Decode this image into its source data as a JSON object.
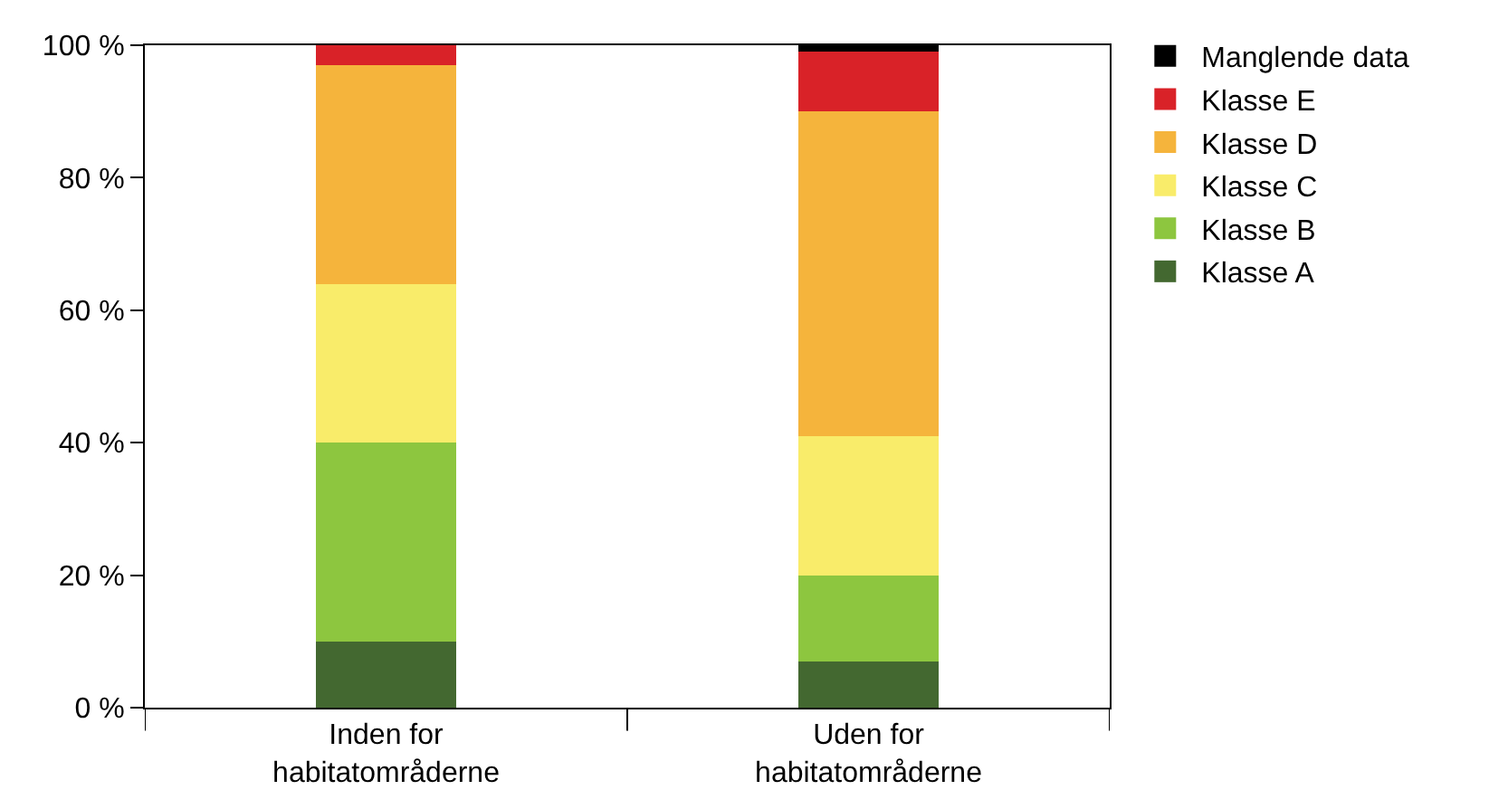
{
  "chart_data": {
    "type": "bar",
    "stacked": true,
    "categories": [
      "Inden for\nhabitatområderne",
      "Uden for\nhabitatområderne"
    ],
    "series": [
      {
        "name": "Klasse A",
        "color": "#436830",
        "values": [
          10,
          7
        ]
      },
      {
        "name": "Klasse B",
        "color": "#8dc63f",
        "values": [
          30,
          13
        ]
      },
      {
        "name": "Klasse C",
        "color": "#f9ec6a",
        "values": [
          24,
          21
        ]
      },
      {
        "name": "Klasse D",
        "color": "#f5b43c",
        "values": [
          33,
          49
        ]
      },
      {
        "name": "Klasse E",
        "color": "#d92228",
        "values": [
          3,
          9
        ]
      },
      {
        "name": "Manglende data",
        "color": "#000000",
        "values": [
          0,
          1
        ]
      }
    ],
    "ylim": [
      0,
      100
    ],
    "yticks": [
      {
        "value": 0,
        "label": "0 %"
      },
      {
        "value": 20,
        "label": "20 %"
      },
      {
        "value": 40,
        "label": "40 %"
      },
      {
        "value": 60,
        "label": "60 %"
      },
      {
        "value": 80,
        "label": "80 %"
      },
      {
        "value": 100,
        "label": "100 %"
      }
    ],
    "grid": false,
    "legend": "right"
  }
}
